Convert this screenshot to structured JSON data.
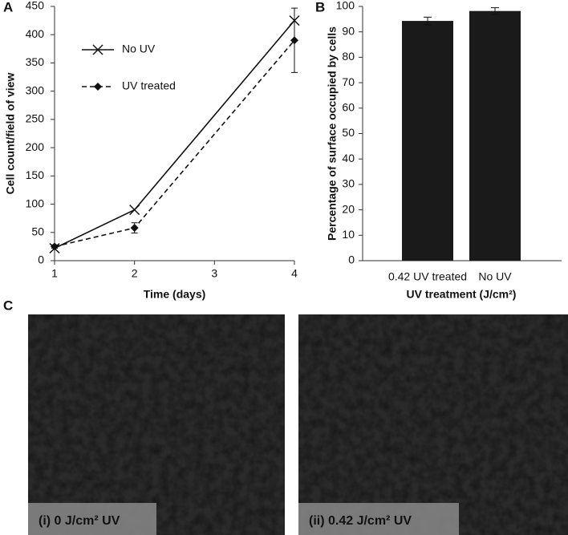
{
  "chart_data": [
    {
      "type": "line",
      "panel_label": "A",
      "x_label": "Time (days)",
      "y_label": "Cell count/field of view",
      "x": [
        1,
        2,
        4
      ],
      "xlim": [
        1,
        4
      ],
      "xticks": [
        1,
        2,
        3,
        4
      ],
      "ylim": [
        0,
        450
      ],
      "yticks": [
        0,
        50,
        100,
        150,
        200,
        250,
        300,
        350,
        400,
        450
      ],
      "series": [
        {
          "name": "No UV",
          "color": "#111111",
          "marker": "x",
          "dash": false,
          "values": [
            22,
            90,
            425
          ]
        },
        {
          "name": "UV treated",
          "color": "#111111",
          "marker": "diamond",
          "dash": true,
          "values": [
            25,
            58,
            390
          ],
          "errors": [
            3,
            9,
            57
          ]
        }
      ]
    },
    {
      "type": "bar",
      "panel_label": "B",
      "x_label": "UV treatment (J/cm²)",
      "y_label": "Percentage of surface occupied by cells",
      "categories": [
        "0.42 UV treated",
        "No UV"
      ],
      "values": [
        94.3,
        98.2
      ],
      "errors": [
        1.5,
        1.3
      ],
      "color": "#1a1a1a",
      "ylim": [
        0,
        100
      ],
      "yticks": [
        0,
        10,
        20,
        30,
        40,
        50,
        60,
        70,
        80,
        90,
        100
      ]
    }
  ],
  "panel_c": {
    "label": "C",
    "images": [
      {
        "caption": "(i) 0 J/cm² UV"
      },
      {
        "caption": "(ii) 0.42 J/cm² UV"
      }
    ]
  }
}
